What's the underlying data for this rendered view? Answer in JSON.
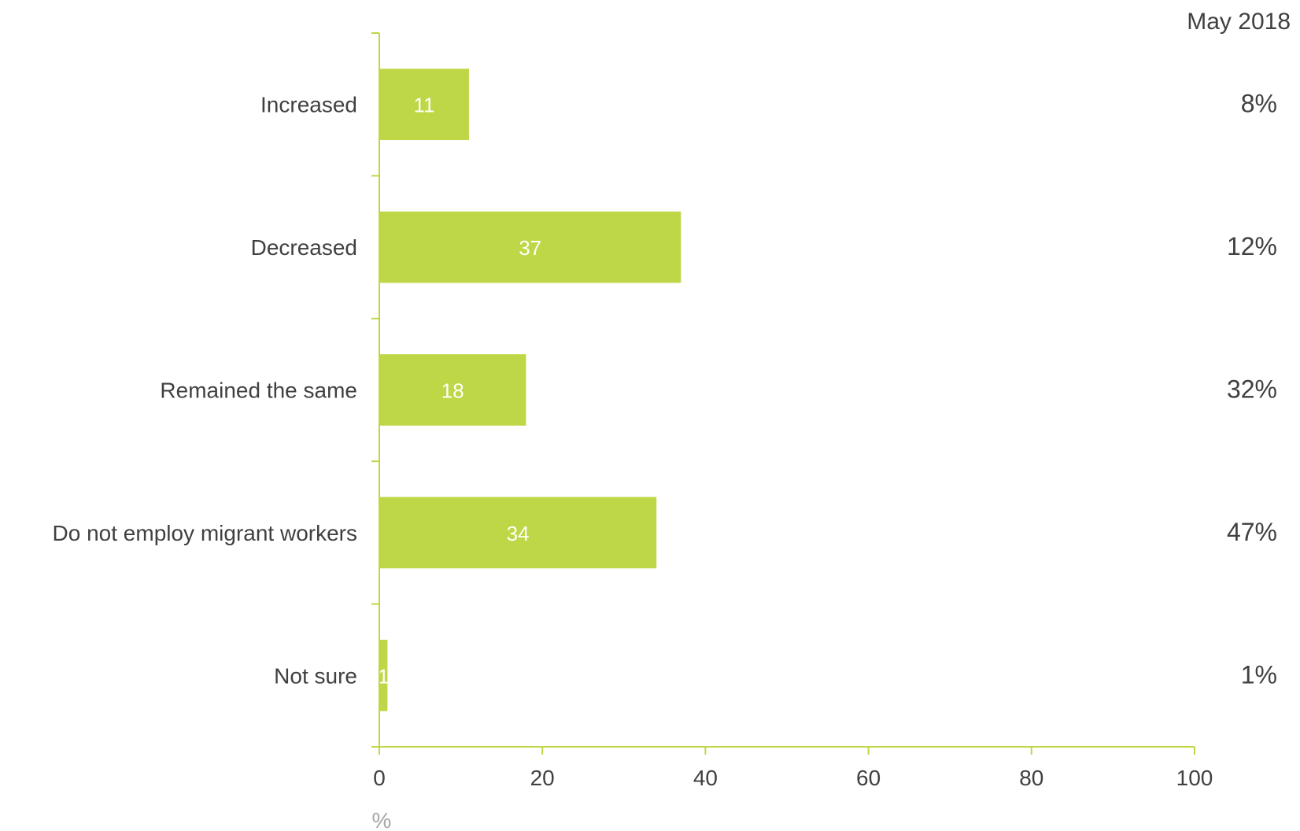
{
  "chart_data": {
    "type": "bar",
    "orientation": "horizontal",
    "categories": [
      "Increased",
      "Decreased",
      "Remained the same",
      "Do not employ migrant workers",
      "Not sure"
    ],
    "values": [
      11,
      37,
      18,
      34,
      1
    ],
    "xlabel": "%",
    "xlim": [
      0,
      100
    ],
    "xticks": [
      0,
      20,
      40,
      60,
      80,
      100
    ],
    "bar_color": "#bdd746",
    "axis_color": "#bdd746",
    "comparison": {
      "title": "May 2018",
      "values": [
        "8%",
        "12%",
        "32%",
        "47%",
        "1%"
      ]
    }
  }
}
